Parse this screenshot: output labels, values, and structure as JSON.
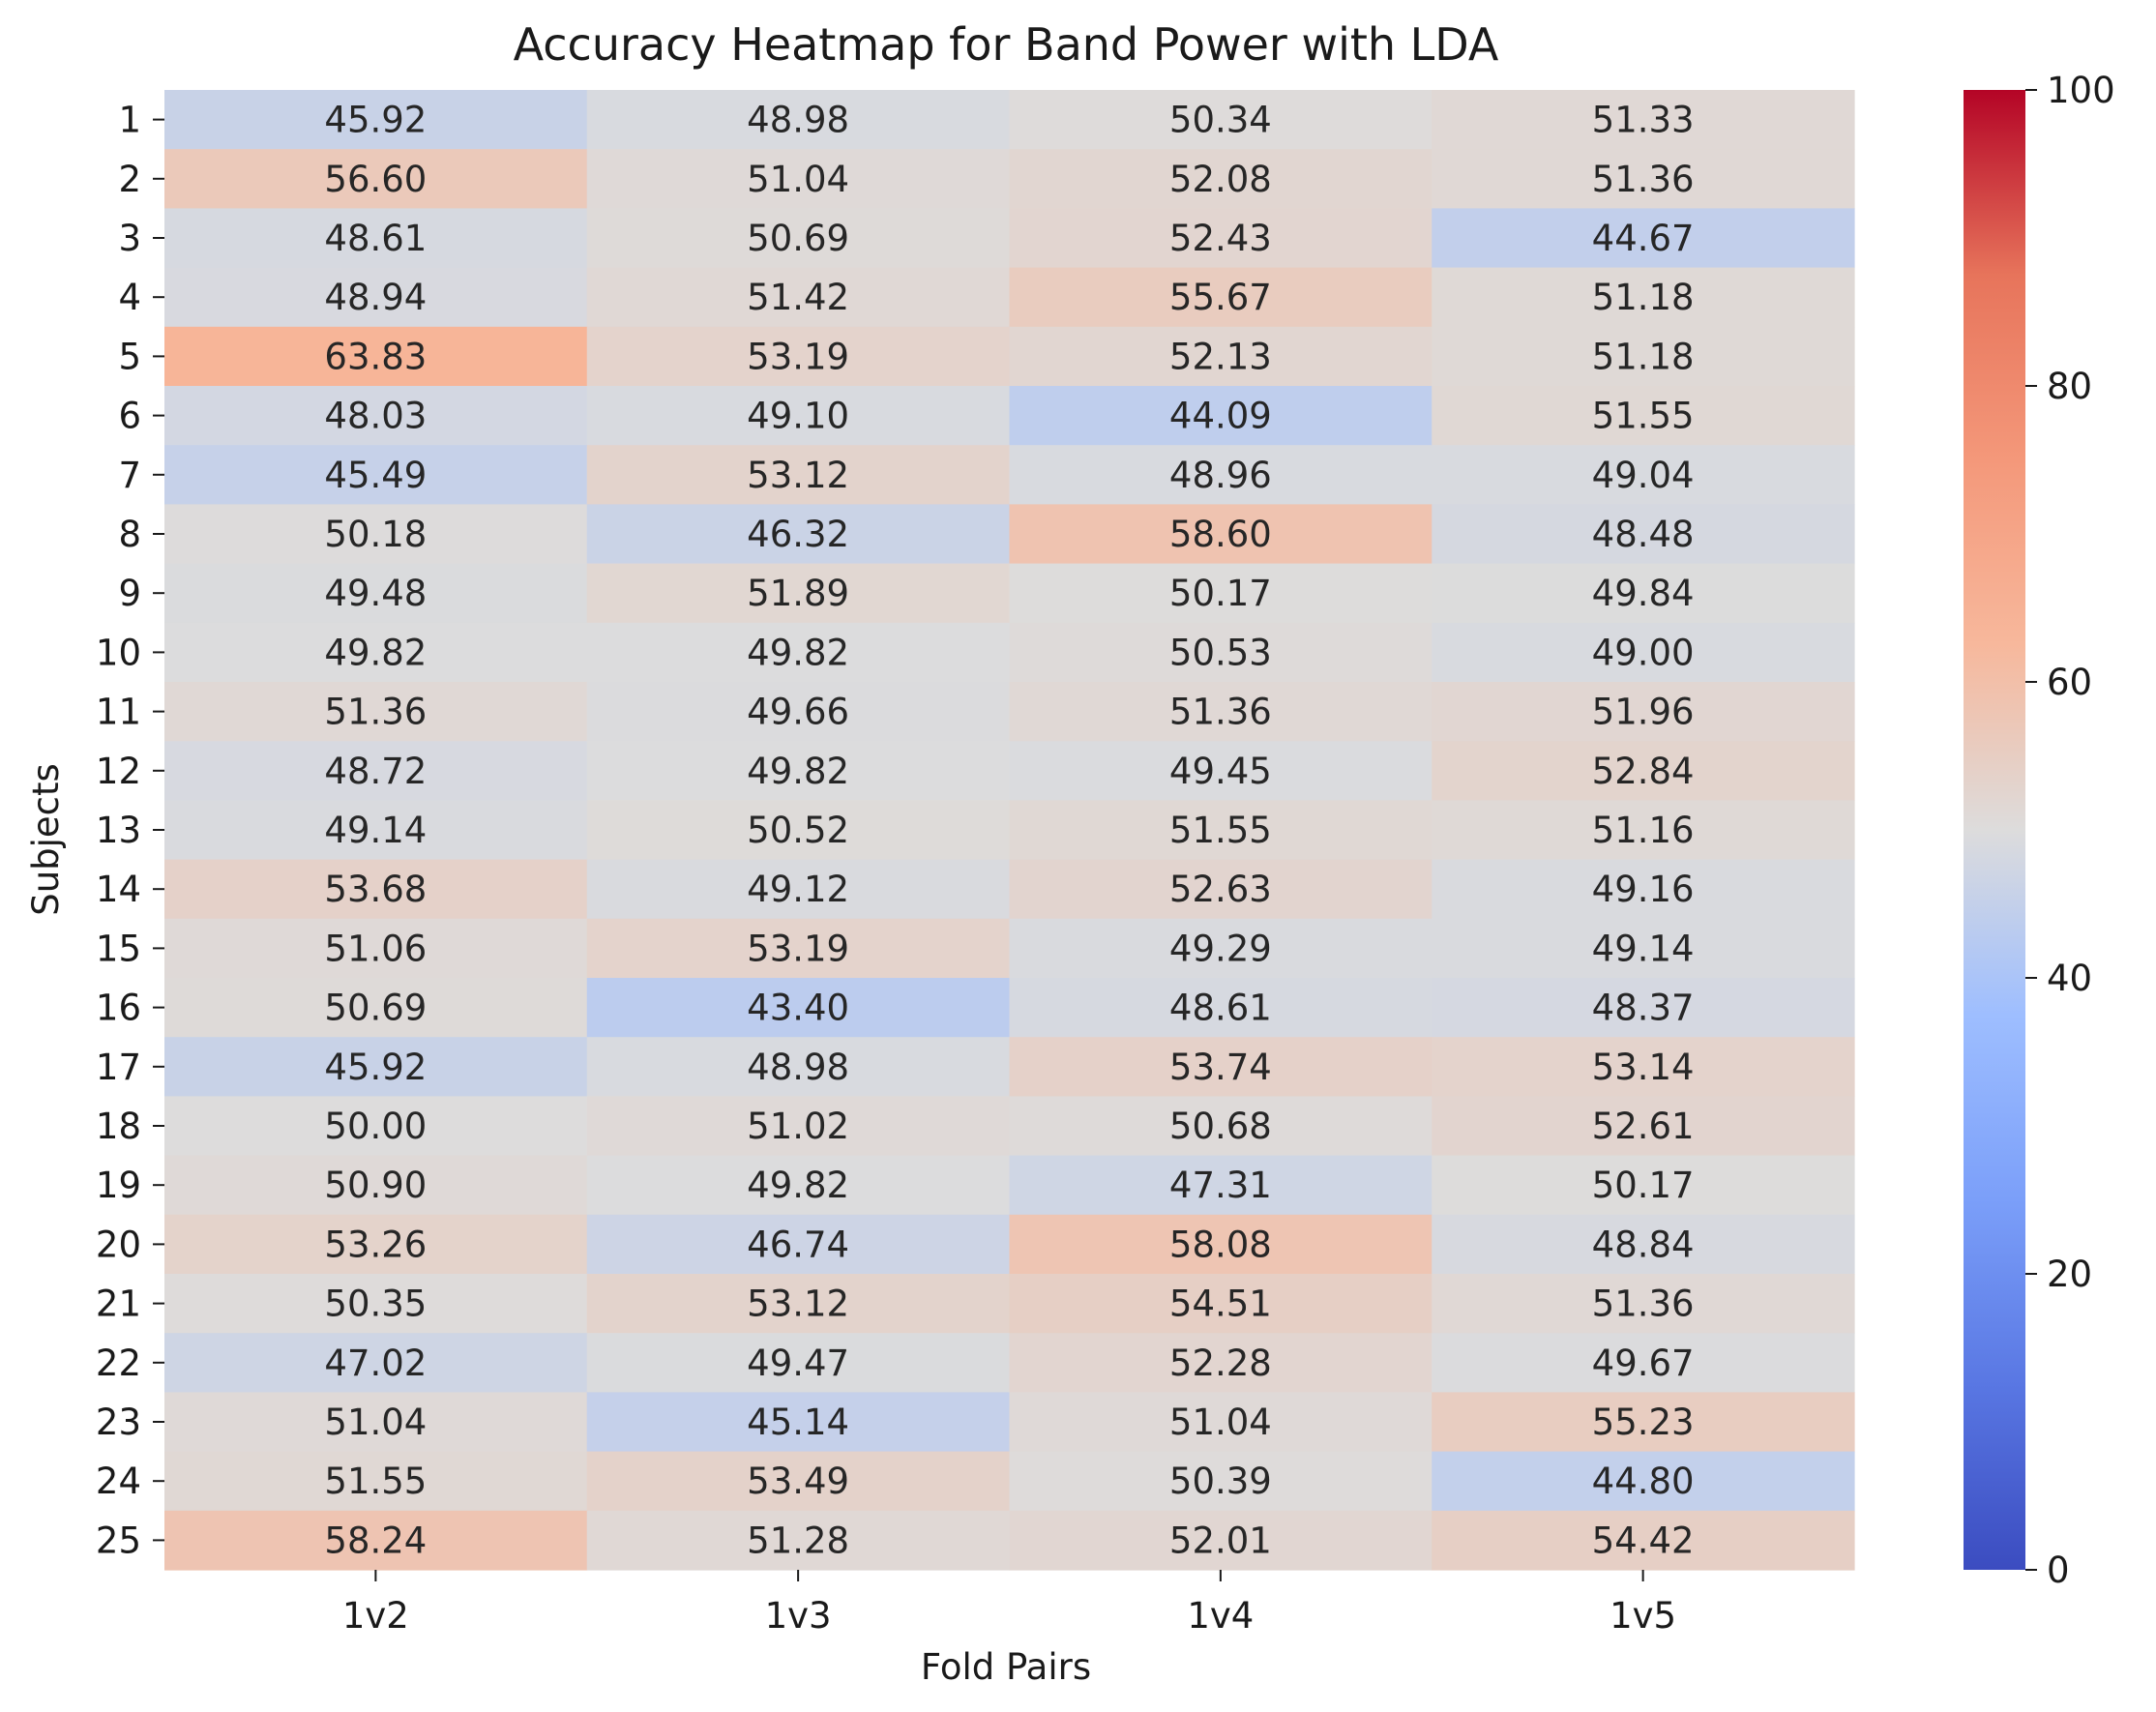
{
  "chart_data": {
    "type": "heatmap",
    "title": "Accuracy Heatmap for Band Power with LDA",
    "xlabel": "Fold Pairs",
    "ylabel": "Subjects",
    "x_categories": [
      "1v2",
      "1v3",
      "1v4",
      "1v5"
    ],
    "y_categories": [
      "1",
      "2",
      "3",
      "4",
      "5",
      "6",
      "7",
      "8",
      "9",
      "10",
      "11",
      "12",
      "13",
      "14",
      "15",
      "16",
      "17",
      "18",
      "19",
      "20",
      "21",
      "22",
      "23",
      "24",
      "25"
    ],
    "values": [
      [
        "45.92",
        "48.98",
        "50.34",
        "51.33"
      ],
      [
        "56.60",
        "51.04",
        "52.08",
        "51.36"
      ],
      [
        "48.61",
        "50.69",
        "52.43",
        "44.67"
      ],
      [
        "48.94",
        "51.42",
        "55.67",
        "51.18"
      ],
      [
        "63.83",
        "53.19",
        "52.13",
        "51.18"
      ],
      [
        "48.03",
        "49.10",
        "44.09",
        "51.55"
      ],
      [
        "45.49",
        "53.12",
        "48.96",
        "49.04"
      ],
      [
        "50.18",
        "46.32",
        "58.60",
        "48.48"
      ],
      [
        "49.48",
        "51.89",
        "50.17",
        "49.84"
      ],
      [
        "49.82",
        "49.82",
        "50.53",
        "49.00"
      ],
      [
        "51.36",
        "49.66",
        "51.36",
        "51.96"
      ],
      [
        "48.72",
        "49.82",
        "49.45",
        "52.84"
      ],
      [
        "49.14",
        "50.52",
        "51.55",
        "51.16"
      ],
      [
        "53.68",
        "49.12",
        "52.63",
        "49.16"
      ],
      [
        "51.06",
        "53.19",
        "49.29",
        "49.14"
      ],
      [
        "50.69",
        "43.40",
        "48.61",
        "48.37"
      ],
      [
        "45.92",
        "48.98",
        "53.74",
        "53.14"
      ],
      [
        "50.00",
        "51.02",
        "50.68",
        "52.61"
      ],
      [
        "50.90",
        "49.82",
        "47.31",
        "50.17"
      ],
      [
        "53.26",
        "46.74",
        "58.08",
        "48.84"
      ],
      [
        "50.35",
        "53.12",
        "54.51",
        "51.36"
      ],
      [
        "47.02",
        "49.47",
        "52.28",
        "49.67"
      ],
      [
        "51.04",
        "45.14",
        "51.04",
        "55.23"
      ],
      [
        "51.55",
        "53.49",
        "50.39",
        "44.80"
      ],
      [
        "58.24",
        "51.28",
        "52.01",
        "54.42"
      ]
    ],
    "colorbar": {
      "colormap": "coolwarm",
      "vmin": 0,
      "vmax": 100,
      "ticks": [
        "0",
        "20",
        "40",
        "60",
        "80",
        "100"
      ]
    }
  }
}
